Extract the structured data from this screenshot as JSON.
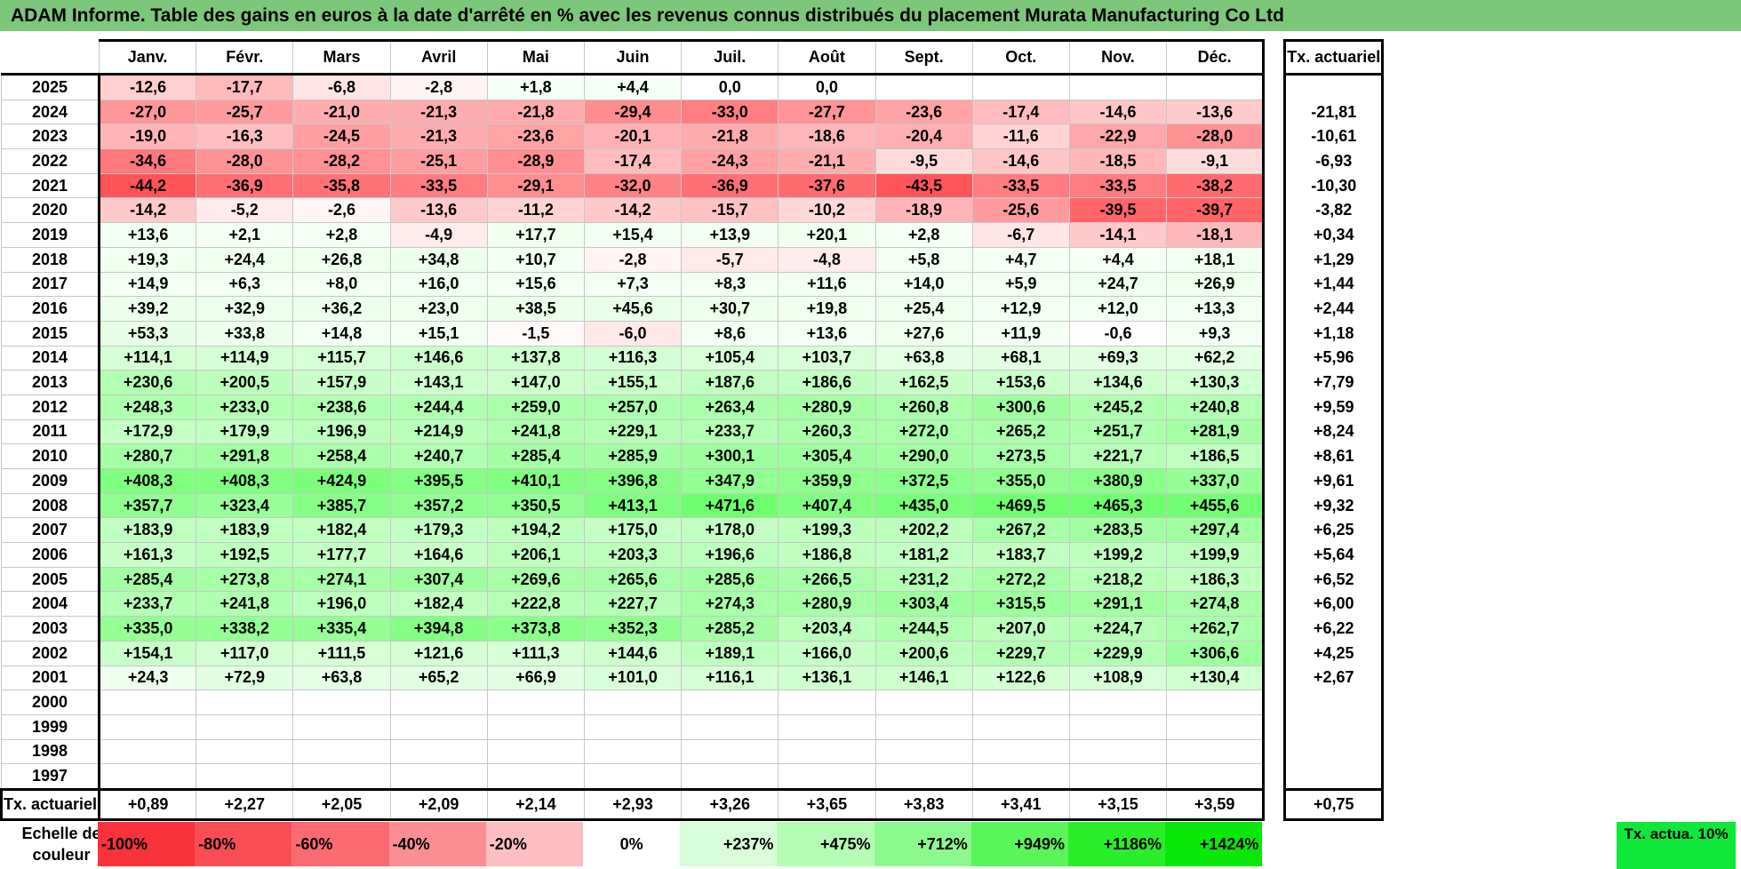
{
  "title": "ADAM Informe. Table des gains en euros à la date d'arrêté en % avec les revenus connus distribués du placement Murata Manufacturing Co Ltd",
  "months": [
    "Janv.",
    "Févr.",
    "Mars",
    "Avril",
    "Mai",
    "Juin",
    "Juil.",
    "Août",
    "Sept.",
    "Oct.",
    "Nov.",
    "Déc."
  ],
  "rate_header": "Tx. actuariel",
  "rows": [
    {
      "year": "2025",
      "values": [
        "-12,6",
        "-17,7",
        "-6,8",
        "-2,8",
        "+1,8",
        "+4,4",
        "0,0",
        "0,0",
        "",
        "",
        "",
        ""
      ],
      "rate": ""
    },
    {
      "year": "2024",
      "values": [
        "-27,0",
        "-25,7",
        "-21,0",
        "-21,3",
        "-21,8",
        "-29,4",
        "-33,0",
        "-27,7",
        "-23,6",
        "-17,4",
        "-14,6",
        "-13,6"
      ],
      "rate": "-21,81"
    },
    {
      "year": "2023",
      "values": [
        "-19,0",
        "-16,3",
        "-24,5",
        "-21,3",
        "-23,6",
        "-20,1",
        "-21,8",
        "-18,6",
        "-20,4",
        "-11,6",
        "-22,9",
        "-28,0"
      ],
      "rate": "-10,61"
    },
    {
      "year": "2022",
      "values": [
        "-34,6",
        "-28,0",
        "-28,2",
        "-25,1",
        "-28,9",
        "-17,4",
        "-24,3",
        "-21,1",
        "-9,5",
        "-14,6",
        "-18,5",
        "-9,1"
      ],
      "rate": "-6,93"
    },
    {
      "year": "2021",
      "values": [
        "-44,2",
        "-36,9",
        "-35,8",
        "-33,5",
        "-29,1",
        "-32,0",
        "-36,9",
        "-37,6",
        "-43,5",
        "-33,5",
        "-33,5",
        "-38,2"
      ],
      "rate": "-10,30"
    },
    {
      "year": "2020",
      "values": [
        "-14,2",
        "-5,2",
        "-2,6",
        "-13,6",
        "-11,2",
        "-14,2",
        "-15,7",
        "-10,2",
        "-18,9",
        "-25,6",
        "-39,5",
        "-39,7"
      ],
      "rate": "-3,82"
    },
    {
      "year": "2019",
      "values": [
        "+13,6",
        "+2,1",
        "+2,8",
        "-4,9",
        "+17,7",
        "+15,4",
        "+13,9",
        "+20,1",
        "+2,8",
        "-6,7",
        "-14,1",
        "-18,1"
      ],
      "rate": "+0,34"
    },
    {
      "year": "2018",
      "values": [
        "+19,3",
        "+24,4",
        "+26,8",
        "+34,8",
        "+10,7",
        "-2,8",
        "-5,7",
        "-4,8",
        "+5,8",
        "+4,7",
        "+4,4",
        "+18,1"
      ],
      "rate": "+1,29"
    },
    {
      "year": "2017",
      "values": [
        "+14,9",
        "+6,3",
        "+8,0",
        "+16,0",
        "+15,6",
        "+7,3",
        "+8,3",
        "+11,6",
        "+14,0",
        "+5,9",
        "+24,7",
        "+26,9"
      ],
      "rate": "+1,44"
    },
    {
      "year": "2016",
      "values": [
        "+39,2",
        "+32,9",
        "+36,2",
        "+23,0",
        "+38,5",
        "+45,6",
        "+30,7",
        "+19,8",
        "+25,4",
        "+12,9",
        "+12,0",
        "+13,3"
      ],
      "rate": "+2,44"
    },
    {
      "year": "2015",
      "values": [
        "+53,3",
        "+33,8",
        "+14,8",
        "+15,1",
        "-1,5",
        "-6,0",
        "+8,6",
        "+13,6",
        "+27,6",
        "+11,9",
        "-0,6",
        "+9,3"
      ],
      "rate": "+1,18"
    },
    {
      "year": "2014",
      "values": [
        "+114,1",
        "+114,9",
        "+115,7",
        "+146,6",
        "+137,8",
        "+116,3",
        "+105,4",
        "+103,7",
        "+63,8",
        "+68,1",
        "+69,3",
        "+62,2"
      ],
      "rate": "+5,96"
    },
    {
      "year": "2013",
      "values": [
        "+230,6",
        "+200,5",
        "+157,9",
        "+143,1",
        "+147,0",
        "+155,1",
        "+187,6",
        "+186,6",
        "+162,5",
        "+153,6",
        "+134,6",
        "+130,3"
      ],
      "rate": "+7,79"
    },
    {
      "year": "2012",
      "values": [
        "+248,3",
        "+233,0",
        "+238,6",
        "+244,4",
        "+259,0",
        "+257,0",
        "+263,4",
        "+280,9",
        "+260,8",
        "+300,6",
        "+245,2",
        "+240,8"
      ],
      "rate": "+9,59"
    },
    {
      "year": "2011",
      "values": [
        "+172,9",
        "+179,9",
        "+196,9",
        "+214,9",
        "+241,8",
        "+229,1",
        "+233,7",
        "+260,3",
        "+272,0",
        "+265,2",
        "+251,7",
        "+281,9"
      ],
      "rate": "+8,24"
    },
    {
      "year": "2010",
      "values": [
        "+280,7",
        "+291,8",
        "+258,4",
        "+240,7",
        "+285,4",
        "+285,9",
        "+300,1",
        "+305,4",
        "+290,0",
        "+273,5",
        "+221,7",
        "+186,5"
      ],
      "rate": "+8,61"
    },
    {
      "year": "2009",
      "values": [
        "+408,3",
        "+408,3",
        "+424,9",
        "+395,5",
        "+410,1",
        "+396,8",
        "+347,9",
        "+359,9",
        "+372,5",
        "+355,0",
        "+380,9",
        "+337,0"
      ],
      "rate": "+9,61"
    },
    {
      "year": "2008",
      "values": [
        "+357,7",
        "+323,4",
        "+385,7",
        "+357,2",
        "+350,5",
        "+413,1",
        "+471,6",
        "+407,4",
        "+435,0",
        "+469,5",
        "+465,3",
        "+455,6"
      ],
      "rate": "+9,32"
    },
    {
      "year": "2007",
      "values": [
        "+183,9",
        "+183,9",
        "+182,4",
        "+179,3",
        "+194,2",
        "+175,0",
        "+178,0",
        "+199,3",
        "+202,2",
        "+267,2",
        "+283,5",
        "+297,4"
      ],
      "rate": "+6,25"
    },
    {
      "year": "2006",
      "values": [
        "+161,3",
        "+192,5",
        "+177,7",
        "+164,6",
        "+206,1",
        "+203,3",
        "+196,6",
        "+186,8",
        "+181,2",
        "+183,7",
        "+199,2",
        "+199,9"
      ],
      "rate": "+5,64"
    },
    {
      "year": "2005",
      "values": [
        "+285,4",
        "+273,8",
        "+274,1",
        "+307,4",
        "+269,6",
        "+265,6",
        "+285,6",
        "+266,5",
        "+231,2",
        "+272,2",
        "+218,2",
        "+186,3"
      ],
      "rate": "+6,52"
    },
    {
      "year": "2004",
      "values": [
        "+233,7",
        "+241,8",
        "+196,0",
        "+182,4",
        "+222,8",
        "+227,7",
        "+274,3",
        "+280,9",
        "+303,4",
        "+315,5",
        "+291,1",
        "+274,8"
      ],
      "rate": "+6,00"
    },
    {
      "year": "2003",
      "values": [
        "+335,0",
        "+338,2",
        "+335,4",
        "+394,8",
        "+373,8",
        "+352,3",
        "+285,2",
        "+203,4",
        "+244,5",
        "+207,0",
        "+224,7",
        "+262,7"
      ],
      "rate": "+6,22"
    },
    {
      "year": "2002",
      "values": [
        "+154,1",
        "+117,0",
        "+111,5",
        "+121,6",
        "+111,3",
        "+144,6",
        "+189,1",
        "+166,0",
        "+200,6",
        "+229,7",
        "+229,9",
        "+306,6"
      ],
      "rate": "+4,25"
    },
    {
      "year": "2001",
      "values": [
        "+24,3",
        "+72,9",
        "+63,8",
        "+65,2",
        "+66,9",
        "+101,0",
        "+116,1",
        "+136,1",
        "+146,1",
        "+122,6",
        "+108,9",
        "+130,4"
      ],
      "rate": "+2,67"
    },
    {
      "year": "2000",
      "values": [
        "",
        "",
        "",
        "",
        "",
        "",
        "",
        "",
        "",
        "",
        "",
        ""
      ],
      "rate": ""
    },
    {
      "year": "1999",
      "values": [
        "",
        "",
        "",
        "",
        "",
        "",
        "",
        "",
        "",
        "",
        "",
        ""
      ],
      "rate": ""
    },
    {
      "year": "1998",
      "values": [
        "",
        "",
        "",
        "",
        "",
        "",
        "",
        "",
        "",
        "",
        "",
        ""
      ],
      "rate": ""
    },
    {
      "year": "1997",
      "values": [
        "",
        "",
        "",
        "",
        "",
        "",
        "",
        "",
        "",
        "",
        "",
        ""
      ],
      "rate": ""
    }
  ],
  "averages": {
    "label": "Tx. actuariel",
    "values": [
      "+0,89",
      "+2,27",
      "+2,05",
      "+2,09",
      "+2,14",
      "+2,93",
      "+3,26",
      "+3,65",
      "+3,83",
      "+3,41",
      "+3,15",
      "+3,59"
    ],
    "rate": "+0,75"
  },
  "color_scale": {
    "label": "Echelle de couleur",
    "items": [
      {
        "label": "-100%",
        "color": "#f8333c",
        "kind": "neg"
      },
      {
        "label": "-80%",
        "color": "#f94d55",
        "kind": "neg"
      },
      {
        "label": "-60%",
        "color": "#fa6a70",
        "kind": "neg"
      },
      {
        "label": "-40%",
        "color": "#fb8e93",
        "kind": "neg"
      },
      {
        "label": "-20%",
        "color": "#fdbec1",
        "kind": "neg"
      },
      {
        "label": "0%",
        "color": "#ffffff",
        "kind": "zero"
      },
      {
        "label": "+237%",
        "color": "#d8fdd8",
        "kind": "pos"
      },
      {
        "label": "+475%",
        "color": "#b4fbb4",
        "kind": "pos"
      },
      {
        "label": "+712%",
        "color": "#8cf98c",
        "kind": "pos"
      },
      {
        "label": "+949%",
        "color": "#5af55a",
        "kind": "pos"
      },
      {
        "label": "+1186%",
        "color": "#2aee2a",
        "kind": "pos"
      },
      {
        "label": "+1424%",
        "color": "#0ae80a",
        "kind": "pos"
      }
    ],
    "rate_label": "Tx. actua. 10%",
    "rate_color": "#0fe83a"
  }
}
